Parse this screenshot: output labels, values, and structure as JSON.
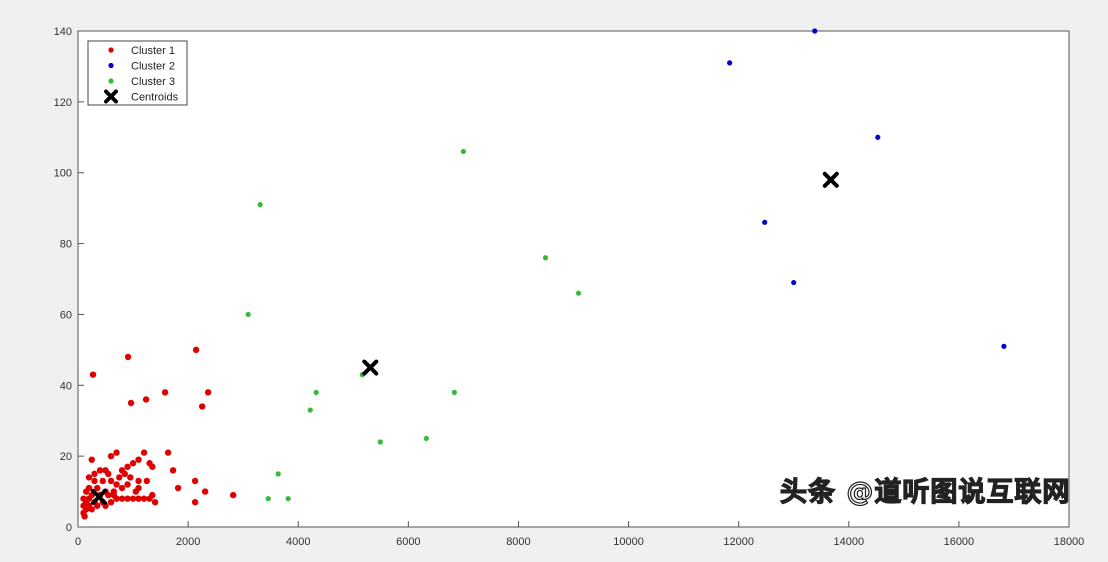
{
  "chart_data": {
    "type": "scatter",
    "title": "",
    "xlabel": "",
    "ylabel": "",
    "xlim": [
      0,
      18000
    ],
    "ylim": [
      0,
      140
    ],
    "xticks": [
      0,
      2000,
      4000,
      6000,
      8000,
      10000,
      12000,
      14000,
      16000,
      18000
    ],
    "yticks": [
      0,
      20,
      40,
      60,
      80,
      100,
      120,
      140
    ],
    "grid": false,
    "legend_placement": "top-left",
    "series": [
      {
        "name": "Cluster 1",
        "color": "#e00000",
        "marker": "dot",
        "points": [
          [
            273,
            43
          ],
          [
            909,
            48
          ],
          [
            2145,
            50
          ],
          [
            964,
            35
          ],
          [
            1236,
            36
          ],
          [
            1582,
            38
          ],
          [
            2364,
            38
          ],
          [
            2255,
            34
          ],
          [
            2818,
            9
          ],
          [
            2127,
            7
          ],
          [
            2309,
            10
          ],
          [
            1818,
            11
          ],
          [
            2127,
            13
          ],
          [
            1636,
            21
          ],
          [
            1727,
            16
          ],
          [
            250,
            19
          ],
          [
            700,
            21
          ],
          [
            600,
            20
          ],
          [
            1200,
            21
          ],
          [
            1100,
            19
          ],
          [
            1000,
            18
          ],
          [
            900,
            17
          ],
          [
            800,
            16
          ],
          [
            1300,
            18
          ],
          [
            1350,
            17
          ],
          [
            400,
            16
          ],
          [
            300,
            15
          ],
          [
            500,
            16
          ],
          [
            550,
            15
          ],
          [
            750,
            14
          ],
          [
            850,
            15
          ],
          [
            200,
            14
          ],
          [
            300,
            13
          ],
          [
            450,
            13
          ],
          [
            600,
            13
          ],
          [
            700,
            12
          ],
          [
            1100,
            13
          ],
          [
            1250,
            13
          ],
          [
            900,
            12
          ],
          [
            800,
            11
          ],
          [
            1100,
            11
          ],
          [
            200,
            11
          ],
          [
            350,
            11
          ],
          [
            500,
            10
          ],
          [
            650,
            10
          ],
          [
            150,
            10
          ],
          [
            250,
            9
          ],
          [
            400,
            9
          ],
          [
            550,
            9
          ],
          [
            700,
            8
          ],
          [
            800,
            8
          ],
          [
            900,
            8
          ],
          [
            1000,
            8
          ],
          [
            1100,
            8
          ],
          [
            1200,
            8
          ],
          [
            1300,
            8
          ],
          [
            1350,
            9
          ],
          [
            1400,
            7
          ],
          [
            100,
            8
          ],
          [
            150,
            7
          ],
          [
            200,
            8
          ],
          [
            300,
            7
          ],
          [
            450,
            7
          ],
          [
            600,
            7
          ],
          [
            100,
            6
          ],
          [
            150,
            5
          ],
          [
            100,
            4
          ],
          [
            120,
            3
          ],
          [
            200,
            6
          ],
          [
            250,
            5
          ],
          [
            350,
            6
          ],
          [
            500,
            6
          ],
          [
            650,
            9
          ],
          [
            1050,
            10
          ],
          [
            950,
            14
          ]
        ]
      },
      {
        "name": "Cluster 2",
        "color": "#0000cc",
        "marker": "dot",
        "points": [
          [
            11836,
            131
          ],
          [
            13382,
            140
          ],
          [
            14527,
            110
          ],
          [
            12473,
            86
          ],
          [
            13000,
            69
          ],
          [
            16818,
            51
          ]
        ]
      },
      {
        "name": "Cluster 3",
        "color": "#33bb33",
        "marker": "dot",
        "points": [
          [
            7000,
            106
          ],
          [
            3309,
            91
          ],
          [
            8491,
            76
          ],
          [
            9091,
            66
          ],
          [
            3091,
            60
          ],
          [
            6836,
            38
          ],
          [
            4327,
            38
          ],
          [
            4218,
            33
          ],
          [
            5491,
            24
          ],
          [
            6327,
            25
          ],
          [
            3636,
            15
          ],
          [
            3455,
            8
          ],
          [
            3818,
            8
          ],
          [
            5164,
            43
          ]
        ]
      },
      {
        "name": "Centroids",
        "color": "#000000",
        "marker": "x",
        "points": [
          [
            382,
            8.5
          ],
          [
            13673,
            98
          ],
          [
            5309,
            45
          ]
        ]
      }
    ]
  },
  "watermark": "头条 @道听图说互联网"
}
